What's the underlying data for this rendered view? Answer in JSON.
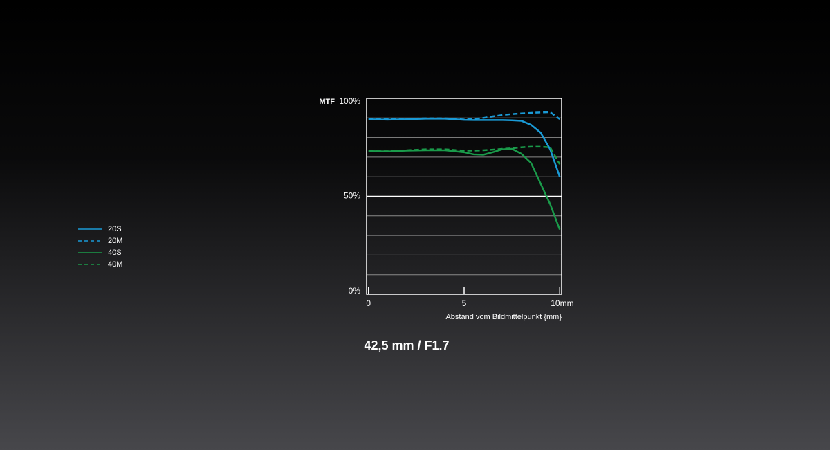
{
  "chart_data": {
    "type": "line",
    "title": "42,5 mm / F1.7",
    "y_label": "MTF",
    "x_label": "Abstand vom Bildmittelpunkt  {mm}",
    "x": [
      0,
      1,
      2,
      3,
      4,
      5,
      5.5,
      6,
      6.5,
      7,
      7.5,
      8,
      8.5,
      9,
      9.5,
      10
    ],
    "series": [
      {
        "name": "20S",
        "color": "#1a9ad6",
        "dash": false,
        "values": [
          89.3,
          89.1,
          89.3,
          89.6,
          89.6,
          89.0,
          88.9,
          88.9,
          88.9,
          88.9,
          88.8,
          88.5,
          86.5,
          82.5,
          74,
          60
        ]
      },
      {
        "name": "20M",
        "color": "#1a9ad6",
        "dash": true,
        "values": [
          89.3,
          89.3,
          89.5,
          89.8,
          89.8,
          89.2,
          89.5,
          90,
          90.8,
          91.5,
          92,
          92.3,
          92.6,
          92.8,
          93,
          89.4
        ]
      },
      {
        "name": "40S",
        "color": "#1a9a4a",
        "dash": false,
        "values": [
          73.1,
          72.9,
          73.3,
          73.5,
          73.5,
          72.5,
          71.4,
          71.2,
          72.5,
          74,
          74.2,
          71.7,
          67,
          56.5,
          46,
          33
        ]
      },
      {
        "name": "40M",
        "color": "#1a9a4a",
        "dash": true,
        "values": [
          73,
          73,
          73.5,
          74,
          74,
          73.3,
          73.3,
          73.5,
          73.8,
          74.2,
          74.5,
          75,
          75.3,
          75.3,
          75,
          66.4
        ]
      }
    ],
    "xlim": [
      -0.1,
      10.1
    ],
    "xticks": [
      0,
      5,
      {
        "value": 10,
        "label": "10mm"
      }
    ],
    "ylim": [
      0,
      100
    ],
    "yticks": [
      {
        "value": 0,
        "label": "0%"
      },
      {
        "value": 10,
        "label": null
      },
      {
        "value": 20,
        "label": null
      },
      {
        "value": 30,
        "label": null
      },
      {
        "value": 40,
        "label": null
      },
      {
        "value": 50,
        "label": "50%"
      },
      {
        "value": 60,
        "label": null
      },
      {
        "value": 70,
        "label": null
      },
      {
        "value": 80,
        "label": null
      },
      {
        "value": 90,
        "label": null
      },
      {
        "value": 100,
        "label": "100%"
      }
    ],
    "grid": true,
    "legend": "left"
  }
}
